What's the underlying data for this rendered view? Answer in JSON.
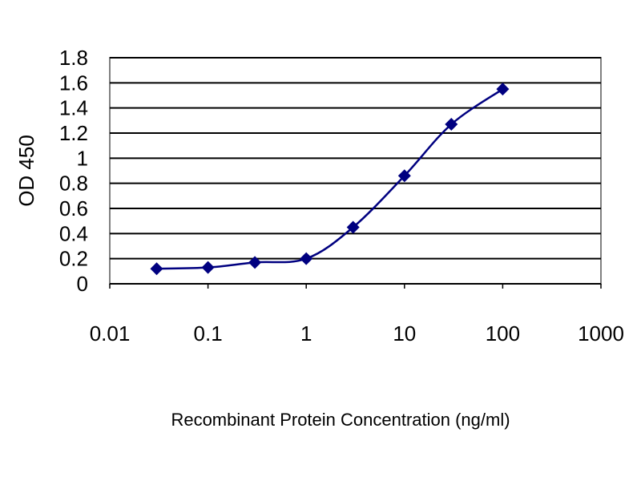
{
  "chart_data": {
    "type": "line",
    "title": "",
    "xlabel": "Recombinant Protein Concentration (ng/ml)",
    "ylabel": "OD 450",
    "x_scale": "log",
    "xlim": [
      0.01,
      1000
    ],
    "ylim": [
      0,
      1.8
    ],
    "x_ticks": [
      "0.01",
      "0.1",
      "1",
      "10",
      "100",
      "1000"
    ],
    "y_ticks": [
      "0",
      "0.2",
      "0.4",
      "0.6",
      "0.8",
      "1",
      "1.2",
      "1.4",
      "1.6",
      "1.8"
    ],
    "grid": true,
    "legend": "none",
    "series": [
      {
        "color": "#000080",
        "marker": "diamond",
        "x": [
          0.03,
          0.1,
          0.3,
          1,
          3,
          10,
          30,
          100
        ],
        "y": [
          0.12,
          0.13,
          0.17,
          0.2,
          0.45,
          0.86,
          1.27,
          1.55
        ]
      }
    ]
  }
}
